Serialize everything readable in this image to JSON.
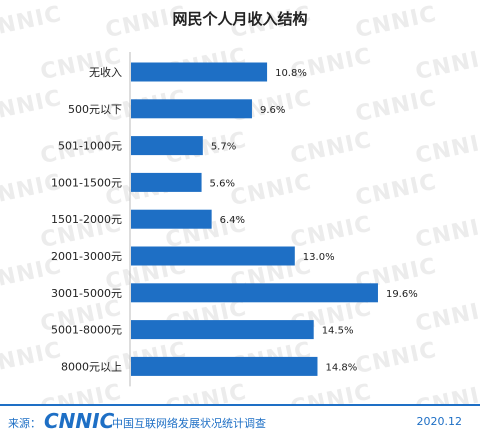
{
  "chart_data": {
    "type": "bar",
    "orientation": "horizontal",
    "title": "网民个人月收入结构",
    "categories": [
      "无收入",
      "500元以下",
      "501-1000元",
      "1001-1500元",
      "1501-2000元",
      "2001-3000元",
      "3001-5000元",
      "5001-8000元",
      "8000元以上"
    ],
    "values": [
      10.8,
      9.6,
      5.7,
      5.6,
      6.4,
      13.0,
      19.6,
      14.5,
      14.8
    ],
    "value_labels": [
      "10.8%",
      "9.6%",
      "5.7%",
      "5.6%",
      "6.4%",
      "13.0%",
      "19.6%",
      "14.5%",
      "14.8%"
    ],
    "bar_color": "#1e6fc5",
    "grid": false,
    "legend": "none"
  },
  "footer": {
    "source_label": "来源：",
    "logo_text": "CNNIC",
    "survey_name": "中国互联网络发展状况统计调查",
    "date": "2020.12"
  },
  "colors": {
    "accent": "#1e6fc5",
    "watermark": "#ececec"
  }
}
